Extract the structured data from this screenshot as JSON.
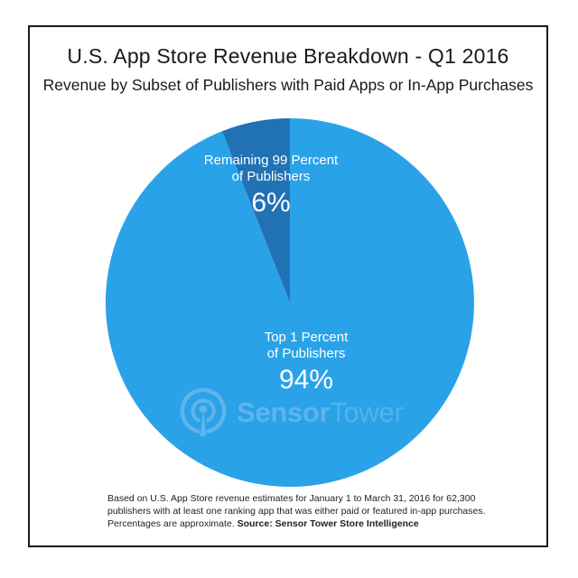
{
  "header": {
    "title": "U.S. App Store Revenue Breakdown - Q1 2016",
    "subtitle": "Revenue by Subset of Publishers with Paid Apps or In-App Purchases"
  },
  "chart_data": {
    "type": "pie",
    "title": "U.S. App Store Revenue Breakdown - Q1 2016",
    "subtitle": "Revenue by Subset of Publishers with Paid Apps or In-App Purchases",
    "start_angle_deg": 0,
    "direction": "clockwise",
    "legend_position": "none (labels inside slices)",
    "label_text_color": "#ffffff",
    "slices": [
      {
        "label": "Top 1 Percent of Publishers",
        "label_lines": [
          "Top 1 Percent",
          "of Publishers"
        ],
        "value_pct": 94,
        "display_value": "94%",
        "color": "#2AA2E8"
      },
      {
        "label": "Remaining 99 Percent of Publishers",
        "label_lines": [
          "Remaining 99 Percent",
          "of Publishers"
        ],
        "value_pct": 6,
        "display_value": "6%",
        "color": "#2171B5"
      }
    ]
  },
  "watermark": {
    "brand_bold": "Sensor",
    "brand_light": "Tower",
    "icon": "sensor-tower-broadcast-icon",
    "color": "#63B6EC"
  },
  "footnote": {
    "line1": "Based on U.S. App Store revenue estimates for January 1 to March 31, 2016 for 62,300",
    "line2": "publishers with at least one ranking app that was either paid or featured in-app purchases.",
    "line3_regular": "Percentages are approximate. ",
    "line3_bold": "Source: Sensor Tower Store Intelligence"
  },
  "colors": {
    "frame_border": "#1a1a1a",
    "background": "#ffffff",
    "title_text": "#1a1a1a",
    "footnote_text": "#222222"
  }
}
